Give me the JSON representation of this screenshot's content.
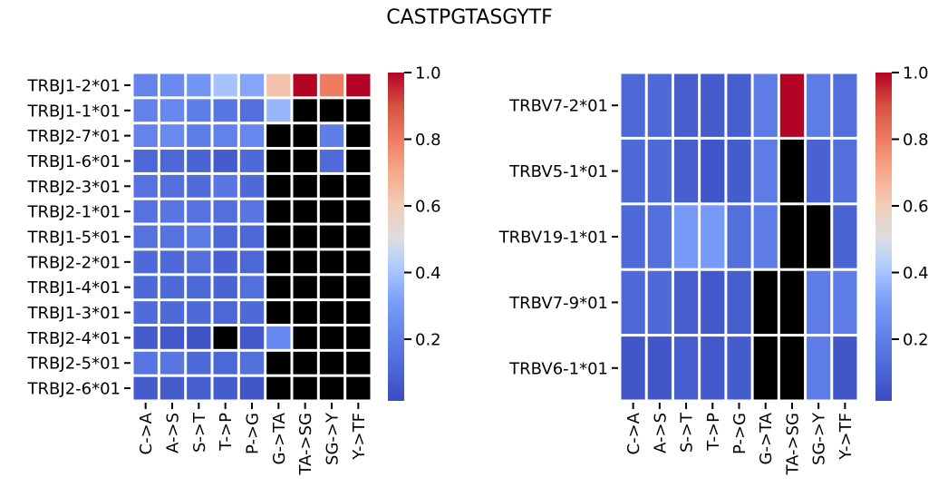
{
  "figure_title": "CASTPGTASGYTF",
  "chart_data": [
    {
      "type": "heatmap",
      "title": "",
      "xlabel": "",
      "ylabel": "",
      "colormap": "coolwarm",
      "missing_color": "#000000",
      "vmin": 0.015,
      "vmax": 1.0,
      "colorbar_ticks": [
        0.2,
        0.4,
        0.6,
        0.8,
        1.0
      ],
      "colorbar_tick_labels": [
        "0.2",
        "0.4",
        "0.6",
        "0.8",
        "1.0"
      ],
      "highlight_color": "#ff0000",
      "highlight_rows": [
        "TRBJ1-2*01"
      ],
      "x": [
        "C->A",
        "A->S",
        "S->T",
        "T->P",
        "P->G",
        "G->TA",
        "TA->SG",
        "SG->Y",
        "Y->TF"
      ],
      "y": [
        "TRBJ1-2*01",
        "TRBJ1-1*01",
        "TRBJ2-7*01",
        "TRBJ1-6*01",
        "TRBJ2-3*01",
        "TRBJ2-1*01",
        "TRBJ1-5*01",
        "TRBJ2-2*01",
        "TRBJ1-4*01",
        "TRBJ1-3*01",
        "TRBJ2-4*01",
        "TRBJ2-5*01",
        "TRBJ2-6*01"
      ],
      "values": [
        [
          0.22,
          0.24,
          0.28,
          0.4,
          0.33,
          0.63,
          1.0,
          0.8,
          1.0
        ],
        [
          0.21,
          0.23,
          0.2,
          0.17,
          0.14,
          0.37,
          null,
          null,
          null
        ],
        [
          0.22,
          0.24,
          0.2,
          0.21,
          0.23,
          null,
          null,
          0.2,
          null
        ],
        [
          0.11,
          0.11,
          0.1,
          0.07,
          0.12,
          null,
          null,
          0.13,
          null
        ],
        [
          0.15,
          0.14,
          0.13,
          0.17,
          0.12,
          null,
          null,
          null,
          null
        ],
        [
          0.15,
          0.16,
          0.15,
          0.14,
          0.16,
          null,
          null,
          null,
          null
        ],
        [
          0.15,
          0.15,
          0.18,
          0.11,
          0.11,
          null,
          null,
          null,
          null
        ],
        [
          0.12,
          0.12,
          0.14,
          0.09,
          0.11,
          null,
          null,
          null,
          null
        ],
        [
          0.12,
          0.12,
          0.11,
          0.1,
          0.14,
          null,
          null,
          null,
          null
        ],
        [
          0.13,
          0.12,
          0.12,
          0.11,
          0.12,
          null,
          null,
          null,
          null
        ],
        [
          0.07,
          0.06,
          0.04,
          null,
          0.06,
          0.23,
          null,
          null,
          null
        ],
        [
          0.16,
          0.17,
          0.12,
          0.11,
          0.14,
          null,
          null,
          null,
          null
        ],
        [
          0.07,
          0.07,
          0.08,
          0.07,
          0.05,
          null,
          null,
          null,
          null
        ]
      ]
    },
    {
      "type": "heatmap",
      "title": "",
      "xlabel": "",
      "ylabel": "",
      "colormap": "coolwarm",
      "missing_color": "#000000",
      "vmin": 0.015,
      "vmax": 1.0,
      "colorbar_ticks": [
        0.2,
        0.4,
        0.6,
        0.8,
        1.0
      ],
      "colorbar_tick_labels": [
        "0.2",
        "0.4",
        "0.6",
        "0.8",
        "1.0"
      ],
      "highlight_color": "#ff0000",
      "highlight_rows": [
        "TRBV7-2*01"
      ],
      "x": [
        "C->A",
        "A->S",
        "S->T",
        "T->P",
        "P->G",
        "G->TA",
        "TA->SG",
        "SG->Y",
        "Y->TF"
      ],
      "y": [
        "TRBV7-2*01",
        "TRBV5-1*01",
        "TRBV19-1*01",
        "TRBV7-9*01",
        "TRBV6-1*01"
      ],
      "values": [
        [
          0.12,
          0.12,
          0.08,
          0.07,
          0.08,
          0.19,
          1.0,
          0.19,
          0.14
        ],
        [
          0.12,
          0.12,
          0.08,
          0.05,
          0.07,
          0.19,
          null,
          0.09,
          0.14
        ],
        [
          0.12,
          0.14,
          0.3,
          0.3,
          0.14,
          0.19,
          null,
          null,
          0.1
        ],
        [
          0.12,
          0.12,
          0.08,
          0.06,
          0.08,
          null,
          null,
          0.19,
          0.19
        ],
        [
          0.05,
          0.05,
          0.08,
          0.06,
          0.07,
          null,
          null,
          0.19,
          0.05
        ]
      ]
    }
  ]
}
